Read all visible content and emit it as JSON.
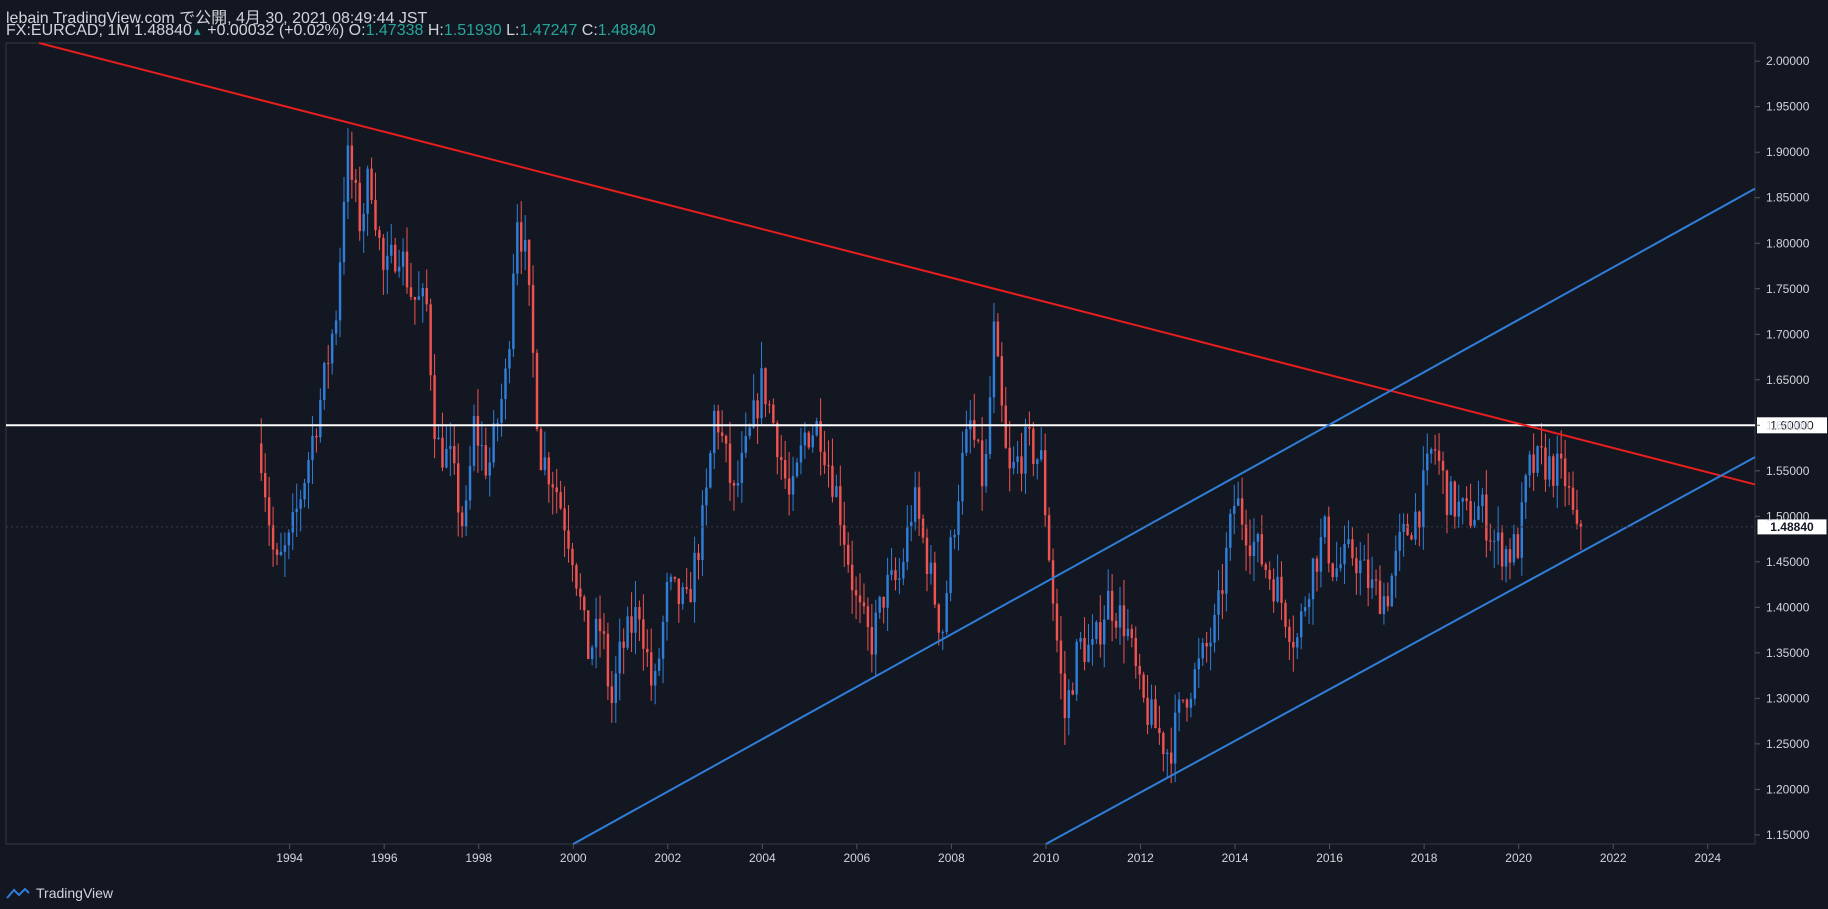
{
  "header": {
    "line1": "lebain TradingView.com で公開, 4月 30, 2021 08:49:44 JST",
    "symbol": "FX:EURCAD, 1M",
    "last": "1.48840",
    "change_arrow": "▲",
    "change": "+0.00032 (+0.02%)",
    "o_label": "O:",
    "o_value": "1.47338",
    "h_label": "H:",
    "h_value": "1.51930",
    "l_label": "L:",
    "l_value": "1.47247",
    "c_label": "C:",
    "c_value": "1.48840"
  },
  "footer": {
    "brand": "TradingView",
    "icon": "tradingview-logo-icon"
  },
  "colors": {
    "background": "#131722",
    "up": "#2f7ed8",
    "down": "#ef5350",
    "resistance_line": "#e81e1e",
    "channel": "#2f7ed8",
    "level_line": "#ffffff",
    "text": "#d1d4dc",
    "teal": "#26a69a"
  },
  "chart_data": {
    "type": "candlestick",
    "symbol": "FX:EURCAD",
    "interval": "1M",
    "ylim": [
      1.14,
      2.02
    ],
    "xlim": [
      1988.0,
      2025.0
    ],
    "y_ticks": [
      "1.15000",
      "1.20000",
      "1.25000",
      "1.30000",
      "1.35000",
      "1.40000",
      "1.45000",
      "1.50000",
      "1.55000",
      "1.60000",
      "1.65000",
      "1.70000",
      "1.75000",
      "1.80000",
      "1.85000",
      "1.90000",
      "1.95000",
      "2.00000"
    ],
    "x_ticks": [
      "1994",
      "1996",
      "1998",
      "2000",
      "2002",
      "2004",
      "2006",
      "2008",
      "2010",
      "2012",
      "2014",
      "2016",
      "2018",
      "2020",
      "2022",
      "2024"
    ],
    "last_price_label": "1.48840",
    "horizontal_level": {
      "price": 1.6,
      "label": "1.60000"
    },
    "trendlines": [
      {
        "name": "resistance",
        "color": "#e81e1e",
        "points": [
          [
            1988.7,
            2.02
          ],
          [
            2025.0,
            1.535
          ]
        ]
      },
      {
        "name": "channel-upper",
        "color": "#2f7ed8",
        "points": [
          [
            2000.0,
            1.14
          ],
          [
            2025.0,
            1.86
          ]
        ]
      },
      {
        "name": "channel-lower",
        "color": "#2f7ed8",
        "points": [
          [
            2010.0,
            1.14
          ],
          [
            2025.0,
            1.565
          ]
        ]
      }
    ],
    "anchors": [
      [
        1993.4,
        1.57
      ],
      [
        1993.7,
        1.44
      ],
      [
        1994.0,
        1.47
      ],
      [
        1994.3,
        1.54
      ],
      [
        1994.7,
        1.64
      ],
      [
        1995.0,
        1.73
      ],
      [
        1995.2,
        1.9
      ],
      [
        1995.5,
        1.82
      ],
      [
        1995.7,
        1.88
      ],
      [
        1996.0,
        1.76
      ],
      [
        1996.3,
        1.8
      ],
      [
        1996.6,
        1.74
      ],
      [
        1996.9,
        1.73
      ],
      [
        1997.1,
        1.58
      ],
      [
        1997.4,
        1.56
      ],
      [
        1997.7,
        1.48
      ],
      [
        1997.9,
        1.6
      ],
      [
        1998.2,
        1.55
      ],
      [
        1998.6,
        1.66
      ],
      [
        1998.8,
        1.84
      ],
      [
        1999.0,
        1.78
      ],
      [
        1999.3,
        1.57
      ],
      [
        1999.6,
        1.54
      ],
      [
        2000.0,
        1.46
      ],
      [
        2000.3,
        1.35
      ],
      [
        2000.6,
        1.38
      ],
      [
        2000.8,
        1.29
      ],
      [
        2001.0,
        1.35
      ],
      [
        2001.4,
        1.4
      ],
      [
        2001.7,
        1.3
      ],
      [
        2002.0,
        1.42
      ],
      [
        2002.4,
        1.4
      ],
      [
        2002.8,
        1.51
      ],
      [
        2003.0,
        1.62
      ],
      [
        2003.4,
        1.52
      ],
      [
        2003.7,
        1.58
      ],
      [
        2004.0,
        1.65
      ],
      [
        2004.3,
        1.59
      ],
      [
        2004.6,
        1.51
      ],
      [
        2004.9,
        1.59
      ],
      [
        2005.2,
        1.6
      ],
      [
        2005.6,
        1.52
      ],
      [
        2006.0,
        1.4
      ],
      [
        2006.3,
        1.36
      ],
      [
        2006.6,
        1.42
      ],
      [
        2006.9,
        1.43
      ],
      [
        2007.2,
        1.52
      ],
      [
        2007.5,
        1.45
      ],
      [
        2007.8,
        1.37
      ],
      [
        2008.0,
        1.47
      ],
      [
        2008.2,
        1.55
      ],
      [
        2008.4,
        1.6
      ],
      [
        2008.7,
        1.53
      ],
      [
        2008.9,
        1.7
      ],
      [
        2009.2,
        1.54
      ],
      [
        2009.6,
        1.58
      ],
      [
        2009.9,
        1.56
      ],
      [
        2010.2,
        1.38
      ],
      [
        2010.4,
        1.28
      ],
      [
        2010.7,
        1.36
      ],
      [
        2011.0,
        1.35
      ],
      [
        2011.3,
        1.41
      ],
      [
        2011.7,
        1.38
      ],
      [
        2012.0,
        1.3
      ],
      [
        2012.3,
        1.27
      ],
      [
        2012.6,
        1.24
      ],
      [
        2012.9,
        1.3
      ],
      [
        2013.2,
        1.33
      ],
      [
        2013.6,
        1.38
      ],
      [
        2014.0,
        1.52
      ],
      [
        2014.3,
        1.48
      ],
      [
        2014.6,
        1.45
      ],
      [
        2014.9,
        1.42
      ],
      [
        2015.3,
        1.36
      ],
      [
        2015.6,
        1.44
      ],
      [
        2015.9,
        1.48
      ],
      [
        2016.1,
        1.44
      ],
      [
        2016.5,
        1.46
      ],
      [
        2016.9,
        1.42
      ],
      [
        2017.2,
        1.41
      ],
      [
        2017.5,
        1.47
      ],
      [
        2017.9,
        1.51
      ],
      [
        2018.2,
        1.58
      ],
      [
        2018.5,
        1.52
      ],
      [
        2018.9,
        1.5
      ],
      [
        2019.2,
        1.51
      ],
      [
        2019.5,
        1.47
      ],
      [
        2019.8,
        1.46
      ],
      [
        2020.0,
        1.47
      ],
      [
        2020.2,
        1.55
      ],
      [
        2020.5,
        1.56
      ],
      [
        2020.8,
        1.55
      ],
      [
        2021.0,
        1.54
      ],
      [
        2021.25,
        1.47
      ],
      [
        2021.33,
        1.4884
      ]
    ]
  }
}
